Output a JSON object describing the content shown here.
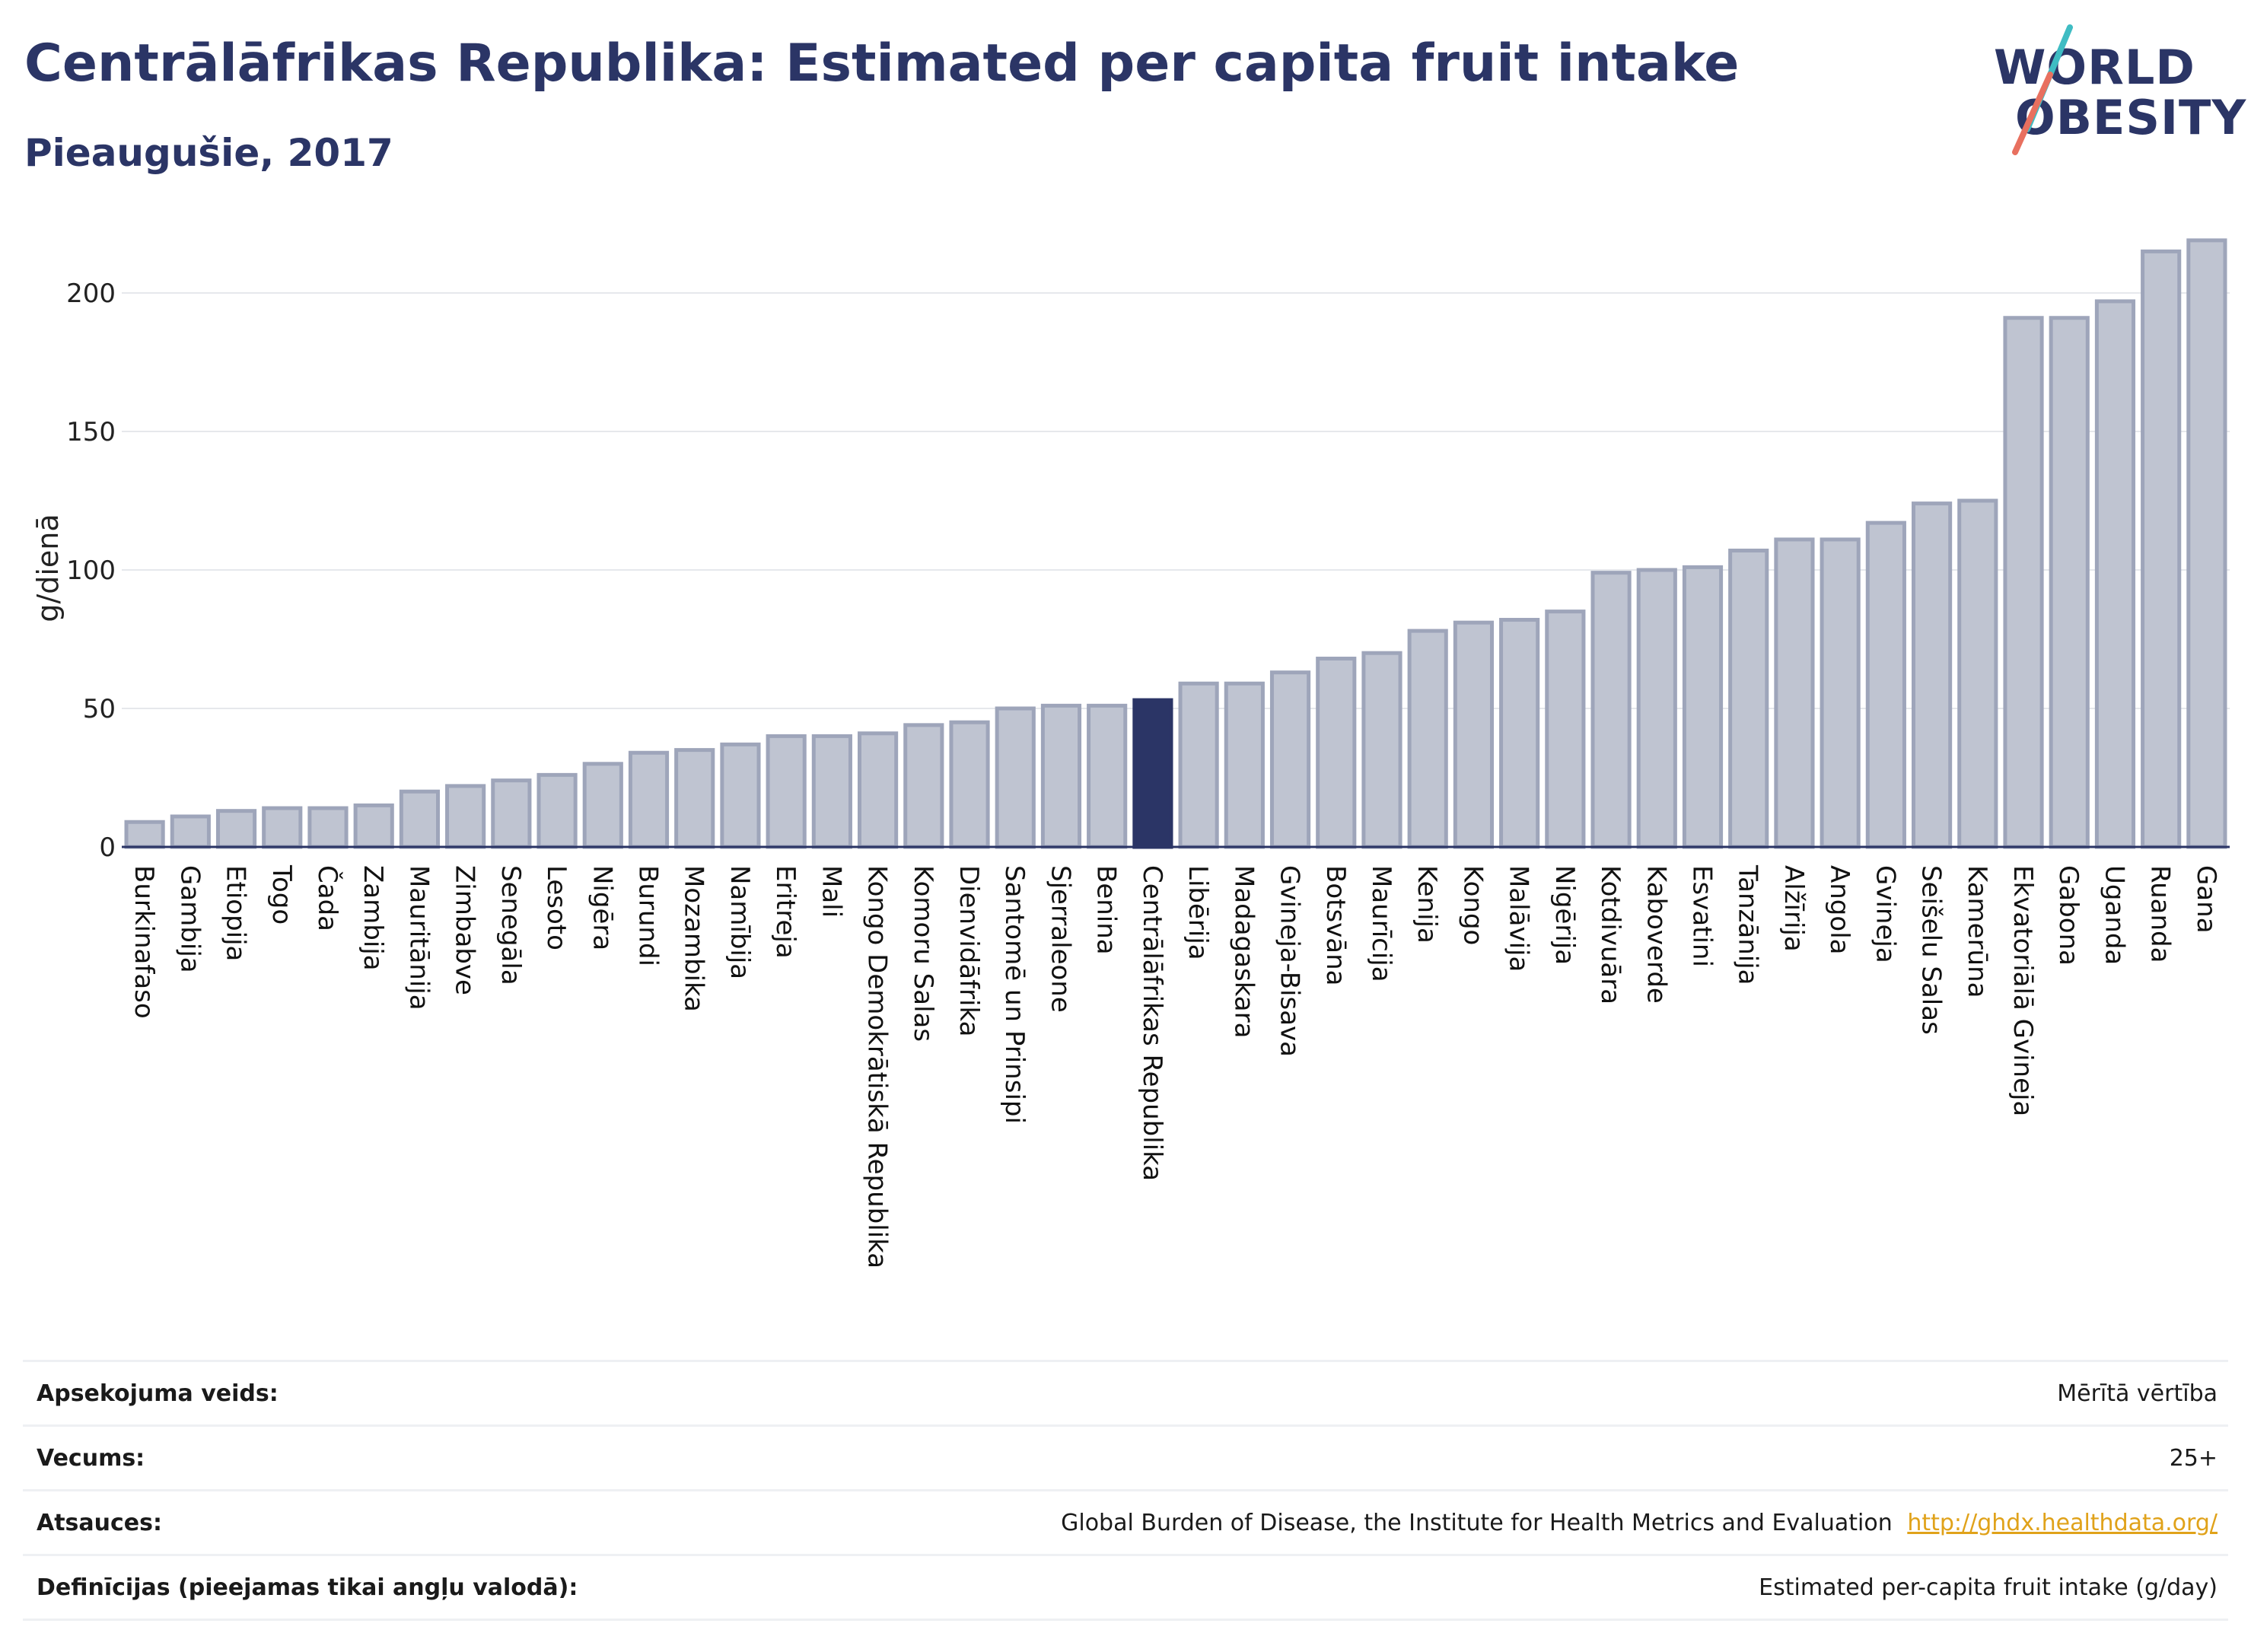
{
  "header": {
    "title": "Centrālāfrikas Republika: Estimated per capita fruit intake",
    "subtitle": "Pieaugušie, 2017"
  },
  "logo": {
    "line1": "WORLD",
    "line2": "OBESITY"
  },
  "chart_data": {
    "type": "bar",
    "ylabel": "g/dienā",
    "ylim": [
      0,
      225
    ],
    "yticks": [
      0,
      50,
      100,
      150,
      200
    ],
    "grid": true,
    "highlight": "Centrālāfrikas Republika",
    "colors": {
      "bar": "#bfc4d1",
      "bar_edge": "#9ea5ba",
      "highlight": "#2b3566"
    },
    "categories": [
      "Burkinafaso",
      "Gambija",
      "Etiopija",
      "Togo",
      "Čada",
      "Zambija",
      "Mauritānija",
      "Zimbabve",
      "Senegāla",
      "Lesoto",
      "Nigēra",
      "Burundi",
      "Mozambika",
      "Namībija",
      "Eritreja",
      "Mali",
      "Kongo Demokrātiskā Republika",
      "Komoru Salas",
      "Dienvidāfrika",
      "Santomē un Prinsipi",
      "Sjerraleone",
      "Benina",
      "Centrālāfrikas Republika",
      "Libērija",
      "Madagaskara",
      "Gvineja-Bisava",
      "Botsvāna",
      "Maurīcija",
      "Kenija",
      "Kongo",
      "Malāvija",
      "Nigērija",
      "Kotdivuāra",
      "Kaboverde",
      "Esvatini",
      "Tanzānija",
      "Alžīrija",
      "Angola",
      "Gvineja",
      "Seišelu Salas",
      "Kamerūna",
      "Ekvatoriālā Gvineja",
      "Gabona",
      "Uganda",
      "Ruanda",
      "Gana"
    ],
    "values": [
      9,
      11,
      13,
      14,
      14,
      15,
      20,
      22,
      24,
      26,
      30,
      34,
      35,
      37,
      40,
      40,
      41,
      44,
      45,
      50,
      51,
      51,
      53,
      59,
      59,
      63,
      68,
      70,
      78,
      81,
      82,
      85,
      99,
      100,
      101,
      107,
      111,
      111,
      117,
      124,
      125,
      191,
      191,
      197,
      215,
      219
    ]
  },
  "meta": {
    "rows": [
      {
        "key": "Apsekojuma veids:",
        "value": "Mērītā vērtība"
      },
      {
        "key": "Vecums:",
        "value": "25+"
      },
      {
        "key": "Atsauces:",
        "value": "Global Burden of Disease, the Institute for Health Metrics and Evaluation",
        "link": "http://ghdx.healthdata.org/"
      },
      {
        "key": "Definīcijas (pieejamas tikai angļu valodā):",
        "value": "Estimated per-capita fruit intake (g/day)"
      }
    ]
  }
}
